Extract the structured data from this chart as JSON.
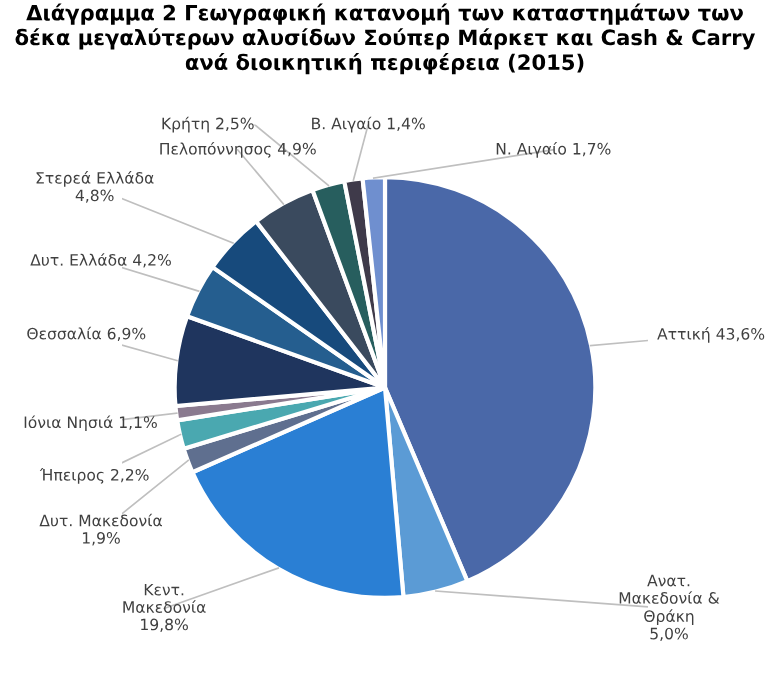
{
  "chart_data": {
    "type": "pie",
    "title": "Διάγραμμα 2 Γεωγραφική κατανομή των καταστημάτων των δέκα μεγαλύτερων αλυσίδων Σούπερ Μάρκετ και Cash & Carry ανά διοικητική περιφέρεια (2015)",
    "categories": [
      "Αττική",
      "Ανατ.\nΜακεδονία &\nΘράκη",
      "Κεντ.\nΜακεδονία",
      "Δυτ. Μακεδονία",
      "Ήπειρος",
      "Ιόνια Νησιά",
      "Θεσσαλία",
      "Δυτ. Ελλάδα",
      "Στερεά Ελλάδα",
      "Πελοπόννησος",
      "Κρήτη",
      "Β. Αιγαίο",
      "Ν. Αιγαίο"
    ],
    "values": [
      43.6,
      5.0,
      19.8,
      1.9,
      2.2,
      1.1,
      6.9,
      4.2,
      4.8,
      4.9,
      2.5,
      1.4,
      1.7
    ],
    "value_labels": [
      "43,6%",
      "5,0%",
      "19,8%",
      "1,9%",
      "2,2%",
      "1,1%",
      "6,9%",
      "4,2%",
      "4,8%",
      "4,9%",
      "2,5%",
      "1,4%",
      "1,7%"
    ],
    "colors": [
      "#4a68a8",
      "#5b9bd5",
      "#2a7fd4",
      "#5f6f8f",
      "#4aa8b0",
      "#8a7a8f",
      "#1f355e",
      "#255e8f",
      "#174a7c",
      "#3a4a5e",
      "#275e5e",
      "#3f3a4a",
      "#6f8fcf"
    ],
    "legend": false
  }
}
